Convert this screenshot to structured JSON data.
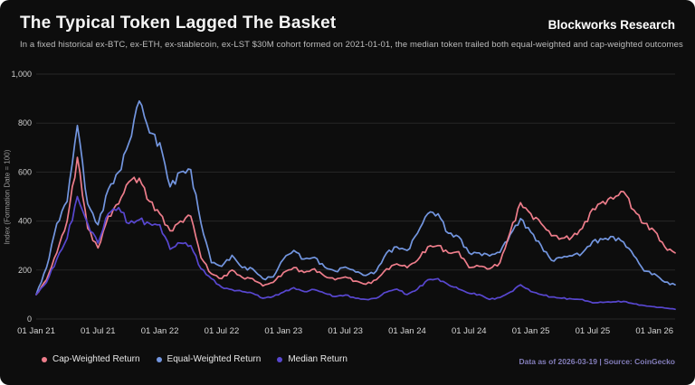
{
  "header": {
    "title": "The Typical Token Lagged The Basket",
    "brand": "Blockworks Research",
    "subtitle": "In a fixed historical ex-BTC, ex-ETH, ex-stablecoin, ex-LST $30M cohort formed on 2021-01-01, the median token trailed both equal-weighted and cap-weighted outcomes"
  },
  "footer": {
    "attribution": "Data as of 2026-03-19 | Source: CoinGecko"
  },
  "colors": {
    "background": "#0d0d0d",
    "grid": "#272727",
    "tick_text": "#cfcfcf",
    "axis_title": "#9a9a9a",
    "cap_weighted": "#ee7d8b",
    "equal_weighted": "#7396e0",
    "median": "#5847d0",
    "attribution": "#837dba"
  },
  "chart_data": {
    "type": "line",
    "title": "The Typical Token Lagged The Basket",
    "xlabel": "",
    "ylabel": "Index (Formation Date = 100)",
    "ylim": [
      0,
      1000
    ],
    "yticks": [
      0,
      200,
      400,
      600,
      800,
      1000
    ],
    "grid": "horizontal",
    "legend_position": "bottom",
    "x_unit": "month",
    "months": [
      "2021-01",
      "2021-02",
      "2021-03",
      "2021-04",
      "2021-05",
      "2021-06",
      "2021-07",
      "2021-08",
      "2021-09",
      "2021-10",
      "2021-11",
      "2021-12",
      "2022-01",
      "2022-02",
      "2022-03",
      "2022-04",
      "2022-05",
      "2022-06",
      "2022-07",
      "2022-08",
      "2022-09",
      "2022-10",
      "2022-11",
      "2022-12",
      "2023-01",
      "2023-02",
      "2023-03",
      "2023-04",
      "2023-05",
      "2023-06",
      "2023-07",
      "2023-08",
      "2023-09",
      "2023-10",
      "2023-11",
      "2023-12",
      "2024-01",
      "2024-02",
      "2024-03",
      "2024-04",
      "2024-05",
      "2024-06",
      "2024-07",
      "2024-08",
      "2024-09",
      "2024-10",
      "2024-11",
      "2024-12",
      "2025-01",
      "2025-02",
      "2025-03",
      "2025-04",
      "2025-05",
      "2025-06",
      "2025-07",
      "2025-08",
      "2025-09",
      "2025-10",
      "2025-11",
      "2025-12",
      "2026-01",
      "2026-02",
      "2026-03"
    ],
    "xticks": [
      {
        "label": "01 Jan 21",
        "month_index": 0
      },
      {
        "label": "01 Jul 21",
        "month_index": 6
      },
      {
        "label": "01 Jan 22",
        "month_index": 12
      },
      {
        "label": "01 Jul 22",
        "month_index": 18
      },
      {
        "label": "01 Jan 23",
        "month_index": 24
      },
      {
        "label": "01 Jul 23",
        "month_index": 30
      },
      {
        "label": "01 Jan 24",
        "month_index": 36
      },
      {
        "label": "01 Jul 24",
        "month_index": 42
      },
      {
        "label": "01 Jan 25",
        "month_index": 48
      },
      {
        "label": "01 Jul 25",
        "month_index": 54
      },
      {
        "label": "01 Jan 26",
        "month_index": 60
      }
    ],
    "series": [
      {
        "name": "Equal-Weighted Return",
        "color": "#7396e0",
        "values": [
          100,
          210,
          390,
          480,
          790,
          470,
          385,
          530,
          600,
          720,
          890,
          760,
          720,
          540,
          600,
          610,
          390,
          230,
          215,
          260,
          210,
          205,
          165,
          172,
          245,
          280,
          245,
          252,
          212,
          196,
          212,
          192,
          178,
          196,
          270,
          295,
          280,
          350,
          430,
          430,
          350,
          336,
          270,
          270,
          258,
          272,
          345,
          410,
          355,
          300,
          240,
          250,
          258,
          270,
          317,
          325,
          336,
          314,
          258,
          196,
          185,
          151,
          140
        ]
      },
      {
        "name": "Cap-Weighted Return",
        "color": "#ee7d8b",
        "values": [
          100,
          160,
          270,
          400,
          660,
          370,
          290,
          420,
          470,
          560,
          575,
          480,
          430,
          360,
          400,
          420,
          250,
          185,
          165,
          200,
          170,
          165,
          135,
          150,
          190,
          210,
          190,
          205,
          175,
          160,
          172,
          155,
          142,
          160,
          205,
          225,
          210,
          240,
          295,
          300,
          270,
          275,
          210,
          215,
          205,
          230,
          355,
          475,
          430,
          390,
          340,
          330,
          335,
          370,
          450,
          480,
          490,
          520,
          445,
          390,
          360,
          295,
          270
        ]
      },
      {
        "name": "Median Return",
        "color": "#5847d0",
        "values": [
          100,
          150,
          245,
          330,
          500,
          390,
          310,
          430,
          455,
          390,
          405,
          390,
          385,
          285,
          310,
          300,
          205,
          165,
          130,
          120,
          112,
          105,
          85,
          92,
          110,
          128,
          112,
          120,
          105,
          92,
          98,
          85,
          80,
          85,
          110,
          122,
          100,
          122,
          160,
          165,
          140,
          122,
          105,
          100,
          80,
          88,
          110,
          140,
          112,
          100,
          90,
          85,
          82,
          80,
          66,
          68,
          70,
          72,
          62,
          55,
          50,
          45,
          40
        ]
      }
    ],
    "legend_order": [
      "Cap-Weighted Return",
      "Equal-Weighted Return",
      "Median Return"
    ]
  }
}
